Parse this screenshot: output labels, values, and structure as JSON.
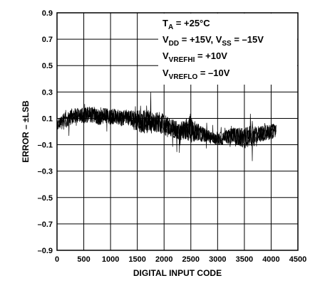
{
  "chart_data": {
    "type": "line",
    "title": "",
    "xlabel": "DIGITAL INPUT CODE",
    "ylabel": "ERROR – ±LSB",
    "xlim": [
      0,
      4500
    ],
    "ylim": [
      -0.9,
      0.9
    ],
    "x_ticks": [
      0,
      500,
      1000,
      1500,
      2000,
      2500,
      3000,
      3500,
      4000,
      4500
    ],
    "x_tick_labels": [
      "0",
      "500",
      "1000",
      "1500",
      "2000",
      "2500",
      "3000",
      "3500",
      "4000",
      "4500"
    ],
    "y_ticks": [
      0.9,
      0.7,
      0.5,
      0.3,
      0.1,
      -0.1,
      -0.3,
      -0.5,
      -0.7,
      -0.9
    ],
    "y_tick_labels": [
      "0.9",
      "0.7",
      "0.5",
      "0.3",
      "0.1",
      "–0.1",
      "–0.3",
      "–0.5",
      "–0.7",
      "–0.9"
    ],
    "grid": true,
    "legend": "none",
    "annotations": [
      {
        "main": "T",
        "sub": "A",
        "rest": " = +25°C"
      },
      {
        "main": "V",
        "sub": "DD",
        "rest": " = +15V, ",
        "main2": "V",
        "sub2": "SS",
        "rest2": " = –15V"
      },
      {
        "main": "V",
        "sub": "VREFHI",
        "rest": " = +10V"
      },
      {
        "main": "V",
        "sub": "VREFLO",
        "rest": " = –10V"
      }
    ],
    "series": [
      {
        "color": "#000000",
        "x": [
          0,
          100,
          200,
          300,
          400,
          500,
          600,
          700,
          800,
          900,
          1000,
          1100,
          1200,
          1300,
          1400,
          1500,
          1600,
          1700,
          1800,
          1900,
          2000,
          2100,
          2200,
          2300,
          2400,
          2500,
          2600,
          2700,
          2800,
          2900,
          3000,
          3100,
          3200,
          3300,
          3400,
          3500,
          3600,
          3700,
          3800,
          3900,
          4000,
          4095
        ],
        "y": [
          0.05,
          0.08,
          0.1,
          0.12,
          0.13,
          0.12,
          0.13,
          0.12,
          0.11,
          0.12,
          0.11,
          0.12,
          0.1,
          0.11,
          0.1,
          0.08,
          0.07,
          0.08,
          0.06,
          0.07,
          0.05,
          0.03,
          0.02,
          0.0,
          0.02,
          0.03,
          0.0,
          -0.02,
          -0.03,
          -0.05,
          -0.06,
          -0.05,
          -0.04,
          -0.03,
          -0.04,
          -0.05,
          -0.03,
          -0.04,
          -0.02,
          -0.01,
          0.0,
          0.01
        ],
        "noise": [
          0.04,
          0.05,
          0.06,
          0.06,
          0.06,
          0.06,
          0.06,
          0.06,
          0.06,
          0.06,
          0.06,
          0.06,
          0.06,
          0.06,
          0.06,
          0.08,
          0.09,
          0.09,
          0.08,
          0.08,
          0.08,
          0.07,
          0.07,
          0.07,
          0.08,
          0.12,
          0.07,
          0.06,
          0.05,
          0.05,
          0.05,
          0.05,
          0.06,
          0.06,
          0.07,
          0.08,
          0.08,
          0.07,
          0.06,
          0.06,
          0.06,
          0.05
        ]
      }
    ]
  }
}
